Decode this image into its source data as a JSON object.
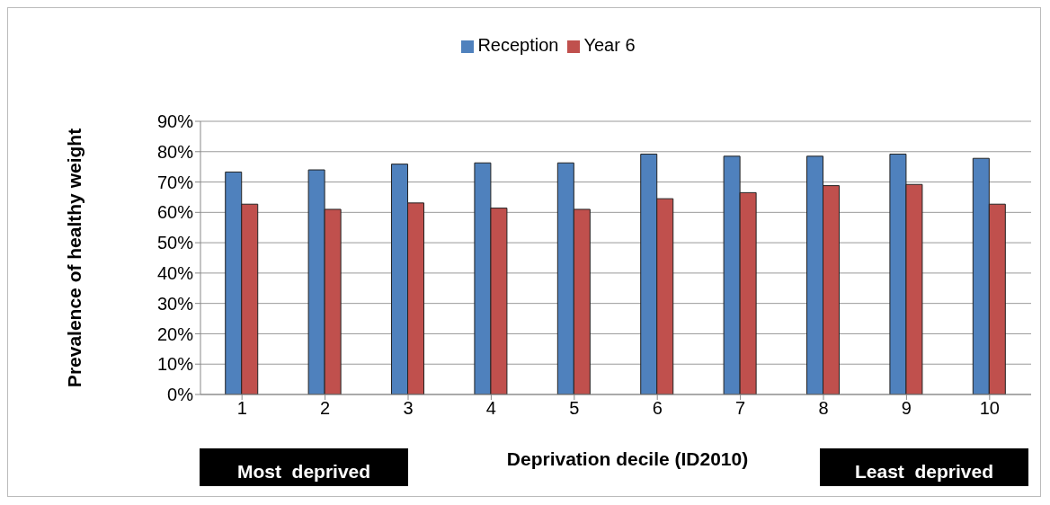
{
  "chart_data": {
    "type": "bar",
    "xlabel": "Deprivation decile (ID2010)",
    "ylabel": "Prevalence of healthy weight",
    "categories": [
      "1",
      "2",
      "3",
      "4",
      "5",
      "6",
      "7",
      "8",
      "9",
      "10"
    ],
    "series": [
      {
        "name": "Reception",
        "color": "#4f81bd",
        "values": [
          73.3,
          74.0,
          75.9,
          76.3,
          76.3,
          79.2,
          78.5,
          78.5,
          79.2,
          77.8
        ]
      },
      {
        "name": "Year 6",
        "color": "#c0504d",
        "values": [
          62.7,
          61.0,
          63.1,
          61.4,
          61.0,
          64.5,
          66.5,
          68.8,
          69.2,
          62.7
        ]
      }
    ],
    "ylim": [
      0,
      90
    ],
    "yticks": [
      {
        "value": 0,
        "label": "0%"
      },
      {
        "value": 10,
        "label": "10%"
      },
      {
        "value": 20,
        "label": "20%"
      },
      {
        "value": 30,
        "label": "30%"
      },
      {
        "value": 40,
        "label": "40%"
      },
      {
        "value": 50,
        "label": "50%"
      },
      {
        "value": 60,
        "label": "60%"
      },
      {
        "value": 70,
        "label": "70%"
      },
      {
        "value": 80,
        "label": "80%"
      },
      {
        "value": 90,
        "label": "90%"
      }
    ],
    "grid": "y",
    "legend": "top",
    "annotations": [
      "Most  deprived",
      "Least  deprived"
    ]
  }
}
